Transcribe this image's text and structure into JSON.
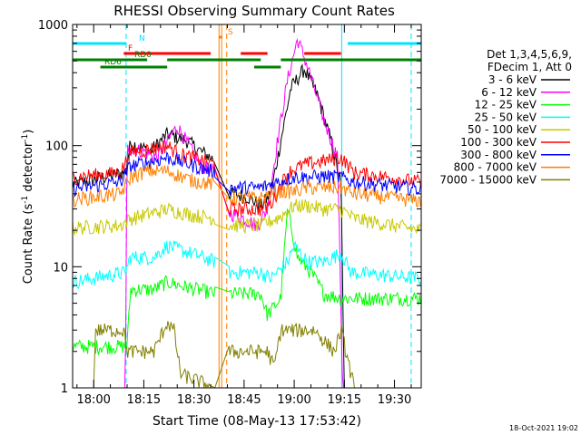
{
  "chart_data": {
    "type": "line",
    "title": "RHESSI Observing Summary Count Rates",
    "xlabel": "Start Time (08-May-13 17:53:42)",
    "ylabel_main": "Count Rate (s",
    "ylabel_sup1": "-1",
    "ylabel_mid": " detector",
    "ylabel_sup2": "-1",
    "ylabel_end": ")",
    "y_scale": "log",
    "x_range_minutes": [
      -6.3,
      98
    ],
    "y_range": [
      1,
      1000
    ],
    "x_ticks": [
      {
        "t": 0,
        "label": "18:00"
      },
      {
        "t": 15,
        "label": "18:15"
      },
      {
        "t": 30,
        "label": "18:30"
      },
      {
        "t": 45,
        "label": "18:45"
      },
      {
        "t": 60,
        "label": "19:00"
      },
      {
        "t": 75,
        "label": "19:15"
      },
      {
        "t": 90,
        "label": "19:30"
      }
    ],
    "y_ticks": [
      {
        "v": 1,
        "label": "1"
      },
      {
        "v": 10,
        "label": "10"
      },
      {
        "v": 100,
        "label": "100"
      },
      {
        "v": 1000,
        "label": "1000"
      }
    ],
    "legend_title": [
      "Det 1,3,4,5,6,9,",
      "FDecim 1, Att 0"
    ],
    "legend_position": "right",
    "footer_date": "18-Oct-2021 19:02",
    "flag_labels": {
      "N": "N",
      "F": "F",
      "RD0": "RD0",
      "RD6": "RD6",
      "S": "S"
    },
    "flags": [
      {
        "name": "N",
        "color": "#00e5ff",
        "segments": [
          [
            -6.3,
            9.8
          ],
          [
            76,
            98
          ]
        ]
      },
      {
        "name": "F",
        "color": "#ff0000",
        "segments": [
          [
            9,
            35
          ],
          [
            44,
            52
          ],
          [
            63,
            74
          ]
        ]
      },
      {
        "name": "RD0",
        "color": "#008000",
        "segments": [
          [
            -6.3,
            16
          ],
          [
            22,
            50
          ],
          [
            56,
            98
          ]
        ]
      },
      {
        "name": "RD6",
        "color": "#008000",
        "segments": [
          [
            2,
            22
          ],
          [
            48,
            56
          ]
        ]
      },
      {
        "name": "S",
        "color": "#ff8000",
        "segments": [
          [
            37.5,
            38.5
          ]
        ]
      }
    ],
    "vlines": [
      {
        "t": 9.7,
        "color": "#00e5ff",
        "dash": true
      },
      {
        "t": 74.2,
        "color": "#00e5ff",
        "dash": false
      },
      {
        "t": 95,
        "color": "#00e5ff",
        "dash": true
      },
      {
        "t": 37.5,
        "color": "#ff8000",
        "dash": false
      },
      {
        "t": 38.3,
        "color": "#ff8000",
        "dash": false
      },
      {
        "t": 39.8,
        "color": "#ff8000",
        "dash": true
      }
    ],
    "series": [
      {
        "name": "3 - 6 keV",
        "color": "#000000",
        "anchors": [
          [
            -6.3,
            48
          ],
          [
            9.5,
            60
          ],
          [
            11,
            105
          ],
          [
            17,
            90
          ],
          [
            22,
            125
          ],
          [
            28,
            110
          ],
          [
            32,
            90
          ],
          [
            36.5,
            75
          ],
          [
            40.5,
            40
          ],
          [
            46,
            38
          ],
          [
            50,
            32
          ],
          [
            53,
            40
          ],
          [
            56,
            110
          ],
          [
            59,
            300
          ],
          [
            63,
            430
          ],
          [
            67,
            260
          ],
          [
            71,
            110
          ],
          [
            74,
            48
          ],
          [
            75,
            1
          ],
          [
            78,
            1
          ],
          [
            98,
            1
          ]
        ]
      },
      {
        "name": "6 - 12 keV",
        "color": "#ff00ff",
        "anchors": [
          [
            -6.3,
            1
          ],
          [
            9.5,
            1
          ],
          [
            10,
            95
          ],
          [
            15,
            90
          ],
          [
            19,
            80
          ],
          [
            25,
            145
          ],
          [
            29,
            95
          ],
          [
            32,
            68
          ],
          [
            36.5,
            60
          ],
          [
            40.5,
            28
          ],
          [
            45,
            25
          ],
          [
            49,
            22
          ],
          [
            52,
            30
          ],
          [
            55,
            110
          ],
          [
            58,
            350
          ],
          [
            61,
            760
          ],
          [
            64,
            450
          ],
          [
            69,
            160
          ],
          [
            73,
            80
          ],
          [
            74.5,
            1
          ],
          [
            98,
            1
          ]
        ]
      },
      {
        "name": "12 - 25 keV",
        "color": "#00ff00",
        "anchors": [
          [
            -6.3,
            2.2
          ],
          [
            10,
            2.2
          ],
          [
            11,
            6.5
          ],
          [
            18,
            6.5
          ],
          [
            22,
            7.5
          ],
          [
            26,
            7
          ],
          [
            36.5,
            6
          ],
          [
            40.5,
            6
          ],
          [
            50,
            6
          ],
          [
            52,
            4
          ],
          [
            56,
            5.5
          ],
          [
            58,
            30
          ],
          [
            61,
            12
          ],
          [
            65,
            9
          ],
          [
            69,
            6
          ],
          [
            74,
            5.5
          ],
          [
            78,
            5.5
          ],
          [
            98,
            5.5
          ]
        ]
      },
      {
        "name": "25 - 50 keV",
        "color": "#00ffff",
        "anchors": [
          [
            -6.3,
            7.5
          ],
          [
            9.5,
            9
          ],
          [
            11,
            12
          ],
          [
            18,
            12
          ],
          [
            22,
            15
          ],
          [
            29,
            13
          ],
          [
            36.5,
            11
          ],
          [
            40.5,
            9
          ],
          [
            50,
            9
          ],
          [
            53,
            8
          ],
          [
            58,
            11
          ],
          [
            60,
            15
          ],
          [
            64,
            11
          ],
          [
            69,
            11
          ],
          [
            74,
            13
          ],
          [
            77,
            9
          ],
          [
            98,
            8
          ]
        ]
      },
      {
        "name": "50 - 100 keV",
        "color": "#c8c800",
        "anchors": [
          [
            -6.3,
            21
          ],
          [
            8,
            22
          ],
          [
            11,
            25
          ],
          [
            18,
            28
          ],
          [
            22,
            30
          ],
          [
            29,
            27
          ],
          [
            36.5,
            25
          ],
          [
            40.5,
            22
          ],
          [
            50,
            22
          ],
          [
            56,
            26
          ],
          [
            60,
            32
          ],
          [
            64,
            32
          ],
          [
            69,
            30
          ],
          [
            74,
            30
          ],
          [
            78,
            25
          ],
          [
            98,
            20
          ]
        ]
      },
      {
        "name": "100 - 300 keV",
        "color": "#ff0000",
        "anchors": [
          [
            -6.3,
            55
          ],
          [
            8,
            60
          ],
          [
            11,
            88
          ],
          [
            18,
            95
          ],
          [
            22,
            100
          ],
          [
            26,
            85
          ],
          [
            36.5,
            70
          ],
          [
            40.5,
            30
          ],
          [
            50,
            30
          ],
          [
            53,
            33
          ],
          [
            58,
            60
          ],
          [
            63,
            70
          ],
          [
            69,
            75
          ],
          [
            74,
            80
          ],
          [
            78,
            60
          ],
          [
            98,
            50
          ]
        ]
      },
      {
        "name": "300 - 800 keV",
        "color": "#0000ff",
        "anchors": [
          [
            -6.3,
            44
          ],
          [
            8,
            50
          ],
          [
            11,
            68
          ],
          [
            18,
            75
          ],
          [
            22,
            80
          ],
          [
            29,
            70
          ],
          [
            36.5,
            60
          ],
          [
            40.5,
            45
          ],
          [
            50,
            45
          ],
          [
            55,
            50
          ],
          [
            60,
            55
          ],
          [
            64,
            55
          ],
          [
            69,
            56
          ],
          [
            74,
            55
          ],
          [
            78,
            50
          ],
          [
            98,
            44
          ]
        ]
      },
      {
        "name": "800 - 7000 keV",
        "color": "#ff8000",
        "anchors": [
          [
            -6.3,
            36
          ],
          [
            8,
            40
          ],
          [
            11,
            55
          ],
          [
            16,
            62
          ],
          [
            22,
            62
          ],
          [
            29,
            52
          ],
          [
            36.5,
            48
          ],
          [
            40.5,
            37
          ],
          [
            50,
            37
          ],
          [
            55,
            42
          ],
          [
            60,
            42
          ],
          [
            64,
            45
          ],
          [
            69,
            45
          ],
          [
            74,
            45
          ],
          [
            78,
            40
          ],
          [
            98,
            35
          ]
        ]
      },
      {
        "name": "7000 - 15000 keV",
        "color": "#808000",
        "anchors": [
          [
            -6.3,
            1
          ],
          [
            0,
            1
          ],
          [
            0.5,
            3
          ],
          [
            9,
            3
          ],
          [
            10,
            2
          ],
          [
            18,
            2
          ],
          [
            22,
            3.5
          ],
          [
            24,
            3
          ],
          [
            26,
            1.3
          ],
          [
            36.5,
            1
          ],
          [
            40.5,
            2
          ],
          [
            52,
            2
          ],
          [
            54,
            1.5
          ],
          [
            56,
            3
          ],
          [
            60,
            3
          ],
          [
            66,
            3
          ],
          [
            72,
            2
          ],
          [
            74,
            3
          ],
          [
            78,
            1
          ],
          [
            98,
            1
          ]
        ]
      }
    ]
  }
}
